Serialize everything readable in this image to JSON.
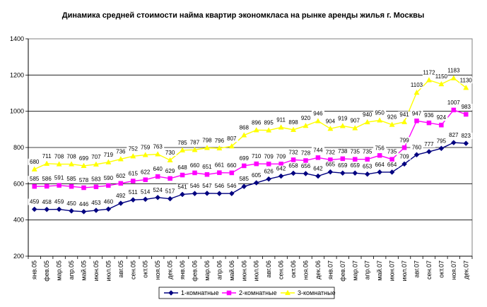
{
  "chart_data": {
    "type": "line",
    "title": "Динамика средней стоимости найма квартир экономкласа на рынке аренды жилья г. Москвы",
    "xlabel": "",
    "ylabel": "",
    "ylim": [
      200,
      1400
    ],
    "yticks": [
      200,
      400,
      600,
      800,
      1000,
      1200,
      1400
    ],
    "grid": "horizontal",
    "legend_position": "bottom",
    "categories": [
      "янв.05",
      "фев.05",
      "мар.05",
      "апр.05",
      "май.05",
      "июн.05",
      "июл.05",
      "авг.05",
      "сен.05",
      "окт.05",
      "ноя.05",
      "дек.05",
      "янв.06",
      "фев.06",
      "мар.06",
      "апр.06",
      "май.06",
      "июн.06",
      "июл.06",
      "авг.06",
      "сен.06",
      "окт.06",
      "ноя.06",
      "дек.06",
      "янв.07",
      "фев.07",
      "мар.07",
      "апр.07",
      "май.07",
      "июн.07",
      "июл.07",
      "авг.07",
      "сен.07",
      "окт.07",
      "ноя.07",
      "дек.07"
    ],
    "series": [
      {
        "name": "1-комнатные",
        "color": "#000080",
        "marker": "diamond",
        "values": [
          459,
          458,
          459,
          450,
          446,
          453,
          460,
          492,
          511,
          514,
          524,
          517,
          541,
          546,
          547,
          546,
          546,
          585,
          605,
          626,
          642,
          658,
          656,
          642,
          665,
          659,
          659,
          653,
          664,
          664,
          709,
          760,
          777,
          795,
          827,
          823
        ]
      },
      {
        "name": "2-комнатные",
        "color": "#FF00FF",
        "marker": "square",
        "values": [
          585,
          586,
          591,
          585,
          578,
          583,
          590,
          602,
          615,
          622,
          640,
          629,
          648,
          660,
          651,
          661,
          660,
          699,
          710,
          709,
          709,
          732,
          728,
          744,
          732,
          738,
          735,
          735,
          756,
          735,
          799,
          947,
          936,
          924,
          1007,
          983
        ]
      },
      {
        "name": "3-комнатные",
        "color": "#FFFF00",
        "marker": "triangle",
        "values": [
          680,
          711,
          708,
          708,
          699,
          707,
          719,
          736,
          752,
          759,
          763,
          730,
          785,
          787,
          798,
          796,
          807,
          868,
          896,
          895,
          911,
          898,
          920,
          946,
          904,
          919,
          907,
          940,
          950,
          926,
          941,
          1103,
          1172,
          1150,
          1183,
          1130
        ]
      }
    ]
  }
}
